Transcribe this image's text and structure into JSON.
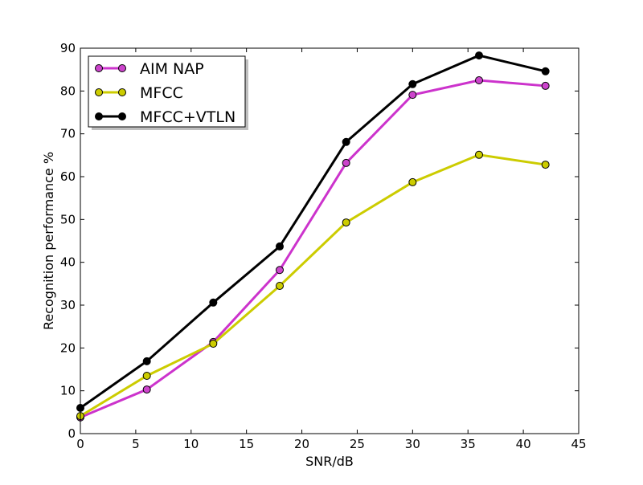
{
  "chart_data": {
    "type": "line",
    "title": "",
    "xlabel": "SNR/dB",
    "ylabel": "Recognition performance %",
    "xlim": [
      0,
      45
    ],
    "ylim": [
      0,
      90
    ],
    "xticks": [
      0,
      5,
      10,
      15,
      20,
      25,
      30,
      35,
      40,
      45
    ],
    "yticks": [
      0,
      10,
      20,
      30,
      40,
      50,
      60,
      70,
      80,
      90
    ],
    "grid": false,
    "legend_placement": "top-left",
    "x": [
      0,
      6,
      12,
      18,
      24,
      30,
      36,
      42
    ],
    "series": [
      {
        "name": "AIM NAP",
        "color": "#cc33cc",
        "marker_color": "#cc44cc",
        "values": [
          3.8,
          10.3,
          21.4,
          38.2,
          63.2,
          79.1,
          82.5,
          81.2
        ]
      },
      {
        "name": "MFCC",
        "color": "#cccc00",
        "marker_color": "#cccc00",
        "values": [
          4.1,
          13.5,
          21.0,
          34.5,
          49.3,
          58.7,
          65.1,
          62.8
        ]
      },
      {
        "name": "MFCC+VTLN",
        "color": "#000000",
        "marker_color": "#000000",
        "values": [
          6.0,
          16.9,
          30.6,
          43.7,
          68.1,
          81.6,
          88.3,
          84.6
        ]
      }
    ]
  }
}
